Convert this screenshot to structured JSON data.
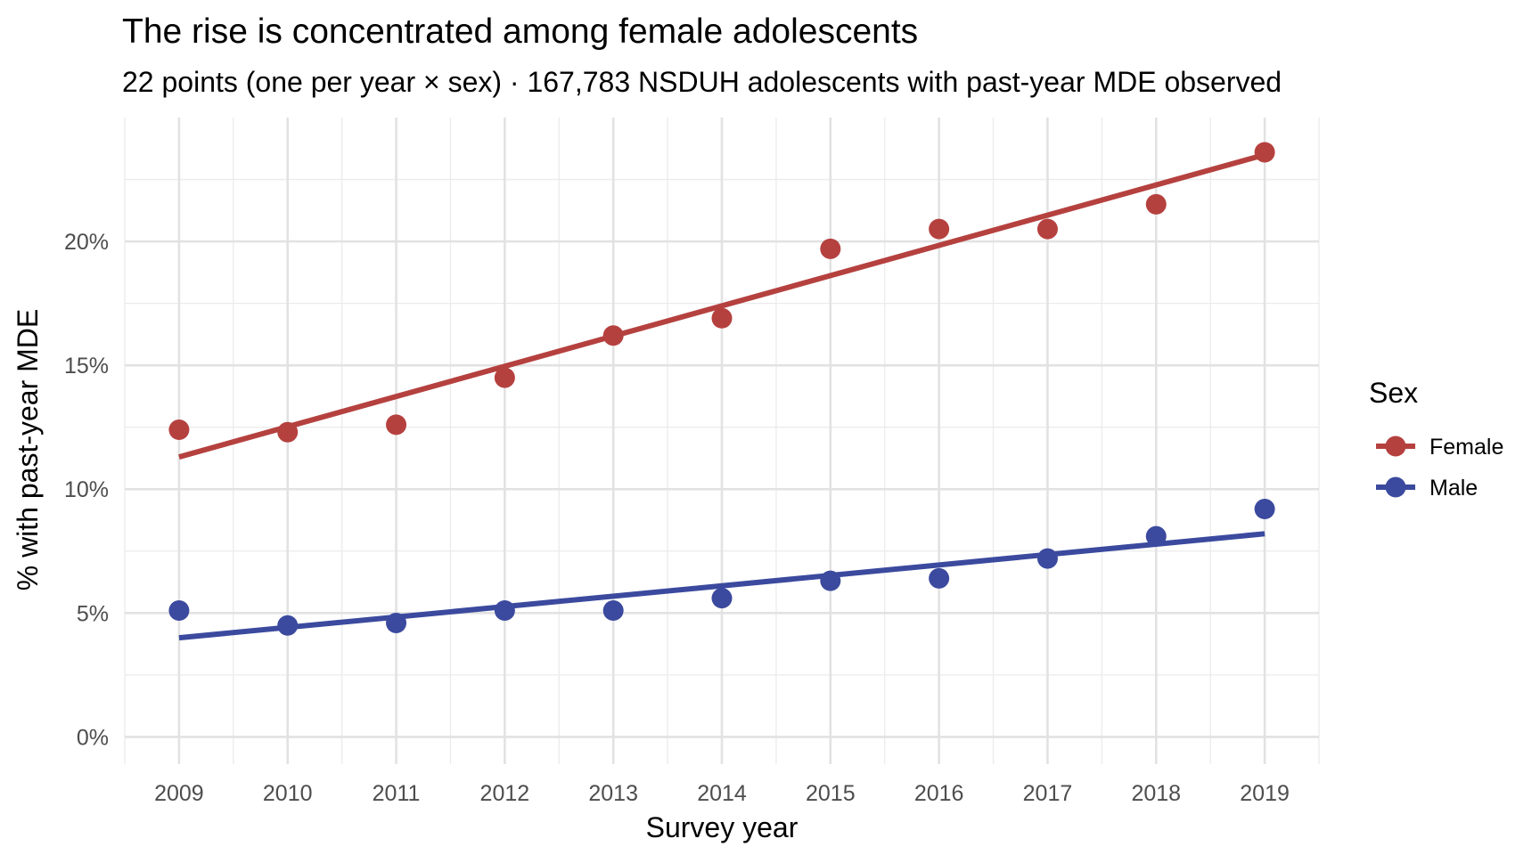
{
  "chart_data": {
    "type": "scatter",
    "title": "The rise is concentrated among female adolescents",
    "subtitle": "22 points (one per year × sex) · 167,783 NSDUH adolescents with past-year MDE observed",
    "xlabel": "Survey year",
    "ylabel": "% with past-year MDE",
    "x": [
      2009,
      2010,
      2011,
      2012,
      2013,
      2014,
      2015,
      2016,
      2017,
      2018,
      2019
    ],
    "xlim": [
      2008.5,
      2019.5
    ],
    "ylim": [
      -1.1,
      25.0
    ],
    "y_ticks": [
      0,
      5,
      10,
      15,
      20
    ],
    "y_tick_labels": [
      "0%",
      "5%",
      "10%",
      "15%",
      "20%"
    ],
    "x_tick_labels": [
      "2009",
      "2010",
      "2011",
      "2012",
      "2013",
      "2014",
      "2015",
      "2016",
      "2017",
      "2018",
      "2019"
    ],
    "grid": true,
    "legend": {
      "title": "Sex",
      "position": "right"
    },
    "series": [
      {
        "name": "Female",
        "color": "#b5413f",
        "values": [
          12.4,
          12.3,
          12.6,
          14.5,
          16.2,
          16.9,
          19.7,
          20.5,
          20.5,
          21.5,
          23.6
        ],
        "fit": {
          "start": 11.3,
          "end": 23.5
        }
      },
      {
        "name": "Male",
        "color": "#3b4a9e",
        "values": [
          5.1,
          4.5,
          4.6,
          5.1,
          5.1,
          5.6,
          6.3,
          6.4,
          7.2,
          8.1,
          9.2
        ],
        "fit": {
          "start": 4.0,
          "end": 8.2
        }
      }
    ]
  }
}
